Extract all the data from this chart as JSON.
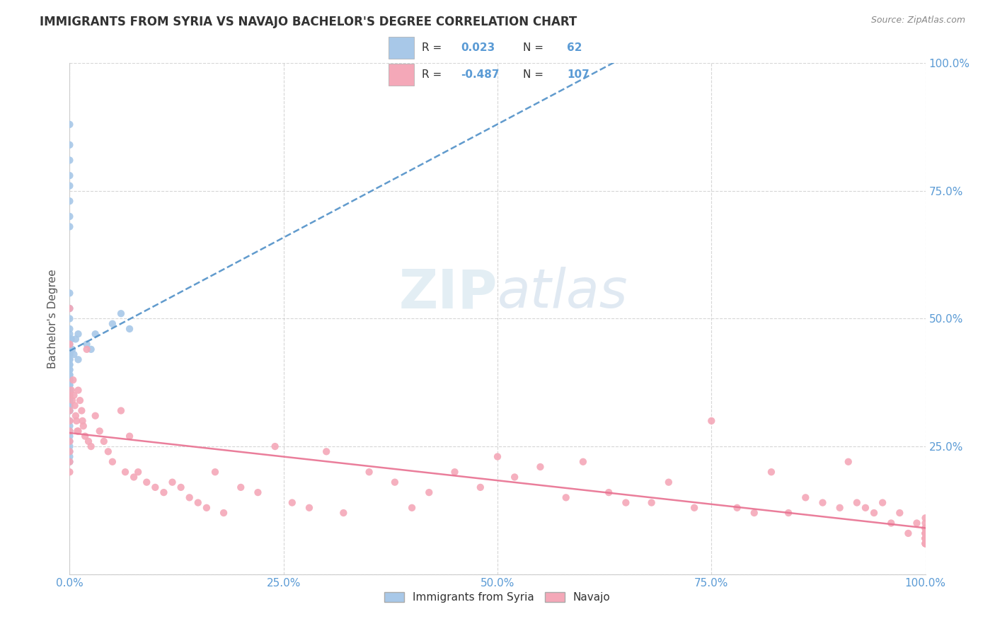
{
  "title": "IMMIGRANTS FROM SYRIA VS NAVAJO BACHELOR'S DEGREE CORRELATION CHART",
  "source": "Source: ZipAtlas.com",
  "ylabel": "Bachelor's Degree",
  "background_color": "#ffffff",
  "grid_color": "#cccccc",
  "blue_scatter_color": "#a8c8e8",
  "pink_scatter_color": "#f4a8b8",
  "blue_line_color": "#5090c8",
  "pink_line_color": "#e87090",
  "blue_R": 0.023,
  "blue_N": 62,
  "pink_R": -0.487,
  "pink_N": 107,
  "watermark_text": "ZIPAtlas",
  "legend_blue_label": "Immigrants from Syria",
  "legend_pink_label": "Navajo",
  "blue_points_x": [
    0.0,
    0.0,
    0.0,
    0.0,
    0.0,
    0.0,
    0.0,
    0.0,
    0.0,
    0.0,
    0.0,
    0.0,
    0.0,
    0.0,
    0.0,
    0.0,
    0.0,
    0.0,
    0.0,
    0.0,
    0.0,
    0.0,
    0.0,
    0.0,
    0.0,
    0.0,
    0.0,
    0.0,
    0.0,
    0.0,
    0.0,
    0.0,
    0.0,
    0.0,
    0.0,
    0.0,
    0.0,
    0.0,
    0.0,
    0.0,
    0.0,
    0.0,
    0.0,
    0.0,
    0.0,
    0.0,
    0.0,
    0.0,
    0.0,
    0.0,
    0.002,
    0.003,
    0.005,
    0.007,
    0.01,
    0.01,
    0.02,
    0.025,
    0.03,
    0.05,
    0.06,
    0.07
  ],
  "blue_points_y": [
    0.88,
    0.84,
    0.81,
    0.78,
    0.76,
    0.73,
    0.7,
    0.68,
    0.55,
    0.52,
    0.5,
    0.48,
    0.47,
    0.46,
    0.45,
    0.44,
    0.44,
    0.43,
    0.43,
    0.42,
    0.42,
    0.41,
    0.41,
    0.4,
    0.4,
    0.39,
    0.39,
    0.38,
    0.38,
    0.37,
    0.37,
    0.36,
    0.36,
    0.35,
    0.35,
    0.34,
    0.34,
    0.33,
    0.33,
    0.32,
    0.32,
    0.3,
    0.29,
    0.28,
    0.27,
    0.26,
    0.25,
    0.24,
    0.23,
    0.22,
    0.46,
    0.44,
    0.43,
    0.46,
    0.47,
    0.42,
    0.45,
    0.44,
    0.47,
    0.49,
    0.51,
    0.48
  ],
  "pink_points_x": [
    0.0,
    0.0,
    0.0,
    0.0,
    0.0,
    0.0,
    0.0,
    0.0,
    0.0,
    0.0,
    0.002,
    0.003,
    0.004,
    0.005,
    0.006,
    0.007,
    0.008,
    0.009,
    0.01,
    0.01,
    0.012,
    0.014,
    0.015,
    0.016,
    0.018,
    0.02,
    0.022,
    0.025,
    0.03,
    0.035,
    0.04,
    0.045,
    0.05,
    0.06,
    0.065,
    0.07,
    0.075,
    0.08,
    0.09,
    0.1,
    0.11,
    0.12,
    0.13,
    0.14,
    0.15,
    0.16,
    0.17,
    0.18,
    0.2,
    0.22,
    0.24,
    0.26,
    0.28,
    0.3,
    0.32,
    0.35,
    0.38,
    0.4,
    0.42,
    0.45,
    0.48,
    0.5,
    0.52,
    0.55,
    0.58,
    0.6,
    0.63,
    0.65,
    0.68,
    0.7,
    0.73,
    0.75,
    0.78,
    0.8,
    0.82,
    0.84,
    0.86,
    0.88,
    0.9,
    0.91,
    0.92,
    0.93,
    0.94,
    0.95,
    0.96,
    0.97,
    0.98,
    0.99,
    1.0,
    1.0,
    1.0,
    1.0,
    1.0,
    1.0,
    1.0,
    1.0,
    1.0,
    1.0,
    1.0,
    1.0,
    1.0,
    1.0,
    1.0,
    1.0,
    1.0,
    1.0,
    1.0
  ],
  "pink_points_y": [
    0.35,
    0.32,
    0.3,
    0.28,
    0.26,
    0.24,
    0.22,
    0.2,
    0.52,
    0.45,
    0.36,
    0.34,
    0.38,
    0.35,
    0.33,
    0.31,
    0.3,
    0.28,
    0.36,
    0.28,
    0.34,
    0.32,
    0.3,
    0.29,
    0.27,
    0.44,
    0.26,
    0.25,
    0.31,
    0.28,
    0.26,
    0.24,
    0.22,
    0.32,
    0.2,
    0.27,
    0.19,
    0.2,
    0.18,
    0.17,
    0.16,
    0.18,
    0.17,
    0.15,
    0.14,
    0.13,
    0.2,
    0.12,
    0.17,
    0.16,
    0.25,
    0.14,
    0.13,
    0.24,
    0.12,
    0.2,
    0.18,
    0.13,
    0.16,
    0.2,
    0.17,
    0.23,
    0.19,
    0.21,
    0.15,
    0.22,
    0.16,
    0.14,
    0.14,
    0.18,
    0.13,
    0.3,
    0.13,
    0.12,
    0.2,
    0.12,
    0.15,
    0.14,
    0.13,
    0.22,
    0.14,
    0.13,
    0.12,
    0.14,
    0.1,
    0.12,
    0.08,
    0.1,
    0.09,
    0.1,
    0.11,
    0.08,
    0.09,
    0.07,
    0.08,
    0.06,
    0.07,
    0.06,
    0.07,
    0.06,
    0.07,
    0.08,
    0.09,
    0.07,
    0.08,
    0.07,
    0.06
  ]
}
